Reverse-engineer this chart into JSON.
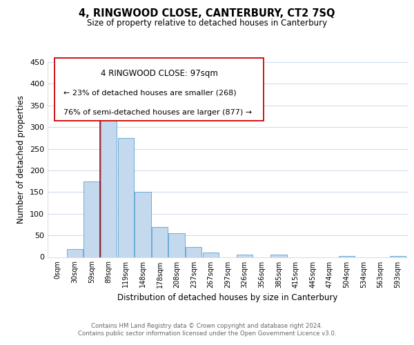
{
  "title": "4, RINGWOOD CLOSE, CANTERBURY, CT2 7SQ",
  "subtitle": "Size of property relative to detached houses in Canterbury",
  "xlabel": "Distribution of detached houses by size in Canterbury",
  "ylabel": "Number of detached properties",
  "bar_labels": [
    "0sqm",
    "30sqm",
    "59sqm",
    "89sqm",
    "119sqm",
    "148sqm",
    "178sqm",
    "208sqm",
    "237sqm",
    "267sqm",
    "297sqm",
    "326sqm",
    "356sqm",
    "385sqm",
    "415sqm",
    "445sqm",
    "474sqm",
    "504sqm",
    "534sqm",
    "563sqm",
    "593sqm"
  ],
  "bar_values": [
    0,
    18,
    175,
    365,
    275,
    150,
    70,
    55,
    23,
    10,
    0,
    6,
    0,
    6,
    0,
    0,
    0,
    2,
    0,
    0,
    2
  ],
  "bar_color": "#c5d9ee",
  "bar_edge_color": "#6aaad4",
  "vline_color": "#aa0000",
  "vline_x_index": 3,
  "ylim": [
    0,
    450
  ],
  "yticks": [
    0,
    50,
    100,
    150,
    200,
    250,
    300,
    350,
    400,
    450
  ],
  "annotation_title": "4 RINGWOOD CLOSE: 97sqm",
  "annotation_line1": "← 23% of detached houses are smaller (268)",
  "annotation_line2": "76% of semi-detached houses are larger (877) →",
  "footer_line1": "Contains HM Land Registry data © Crown copyright and database right 2024.",
  "footer_line2": "Contains public sector information licensed under the Open Government Licence v3.0.",
  "background_color": "#ffffff",
  "grid_color": "#ccd9e8"
}
